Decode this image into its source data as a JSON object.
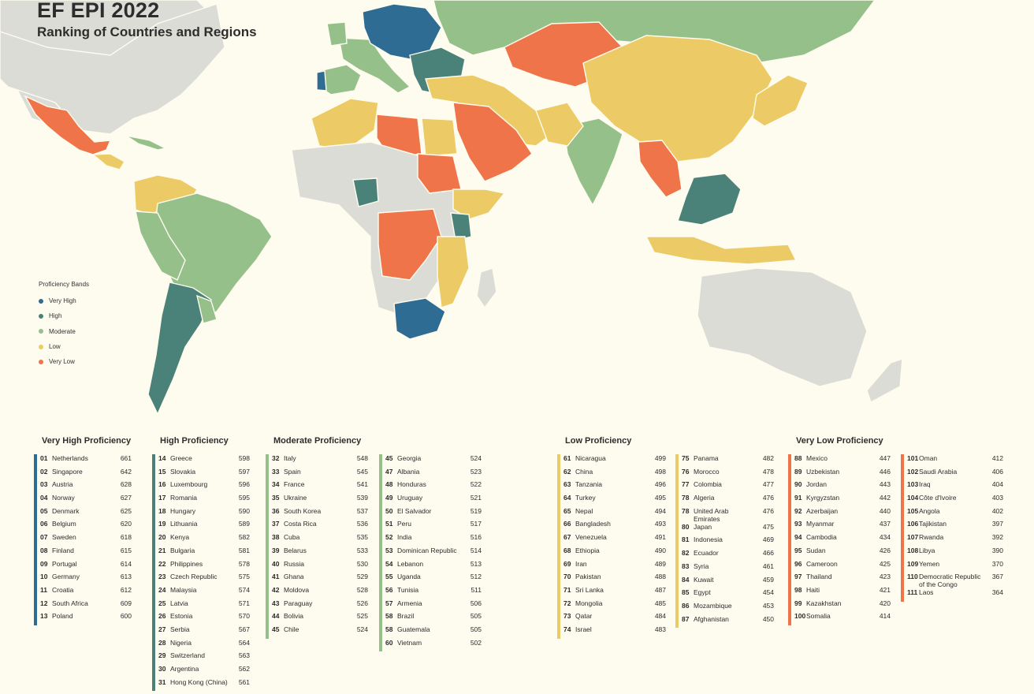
{
  "header": {
    "title": "EF EPI 2022",
    "subtitle": "Ranking of Countries and Regions"
  },
  "legend": {
    "title": "Proficiency Bands",
    "items": [
      {
        "label": "Very High",
        "color": "#2e6c94"
      },
      {
        "label": "High",
        "color": "#4a8279"
      },
      {
        "label": "Moderate",
        "color": "#96c08a"
      },
      {
        "label": "Low",
        "color": "#eccb66"
      },
      {
        "label": "Very Low",
        "color": "#f07449"
      }
    ]
  },
  "chart_data": {
    "type": "table",
    "title": "EF EPI 2022",
    "subtitle": "Ranking of Countries and Regions",
    "bands": [
      {
        "name": "Very High Proficiency",
        "color": "#2e6c94",
        "columns": [
          [
            {
              "rank": "01",
              "country": "Netherlands",
              "score": 661
            },
            {
              "rank": "02",
              "country": "Singapore",
              "score": 642
            },
            {
              "rank": "03",
              "country": "Austria",
              "score": 628
            },
            {
              "rank": "04",
              "country": "Norway",
              "score": 627
            },
            {
              "rank": "05",
              "country": "Denmark",
              "score": 625
            },
            {
              "rank": "06",
              "country": "Belgium",
              "score": 620
            },
            {
              "rank": "07",
              "country": "Sweden",
              "score": 618
            },
            {
              "rank": "08",
              "country": "Finland",
              "score": 615
            },
            {
              "rank": "09",
              "country": "Portugal",
              "score": 614
            },
            {
              "rank": "10",
              "country": "Germany",
              "score": 613
            },
            {
              "rank": "11",
              "country": "Croatia",
              "score": 612
            },
            {
              "rank": "12",
              "country": "South Africa",
              "score": 609
            },
            {
              "rank": "13",
              "country": "Poland",
              "score": 600
            }
          ]
        ]
      },
      {
        "name": "High Proficiency",
        "color": "#4a8279",
        "columns": [
          [
            {
              "rank": "14",
              "country": "Greece",
              "score": 598
            },
            {
              "rank": "15",
              "country": "Slovakia",
              "score": 597
            },
            {
              "rank": "16",
              "country": "Luxembourg",
              "score": 596
            },
            {
              "rank": "17",
              "country": "Romania",
              "score": 595
            },
            {
              "rank": "18",
              "country": "Hungary",
              "score": 590
            },
            {
              "rank": "19",
              "country": "Lithuania",
              "score": 589
            },
            {
              "rank": "20",
              "country": "Kenya",
              "score": 582
            },
            {
              "rank": "21",
              "country": "Bulgaria",
              "score": 581
            },
            {
              "rank": "22",
              "country": "Philippines",
              "score": 578
            },
            {
              "rank": "23",
              "country": "Czech Republic",
              "score": 575
            },
            {
              "rank": "24",
              "country": "Malaysia",
              "score": 574
            },
            {
              "rank": "25",
              "country": "Latvia",
              "score": 571
            },
            {
              "rank": "26",
              "country": "Estonia",
              "score": 570
            },
            {
              "rank": "27",
              "country": "Serbia",
              "score": 567
            },
            {
              "rank": "28",
              "country": "Nigeria",
              "score": 564
            },
            {
              "rank": "29",
              "country": "Switzerland",
              "score": 563
            },
            {
              "rank": "30",
              "country": "Argentina",
              "score": 562
            },
            {
              "rank": "31",
              "country": "Hong Kong (China)",
              "score": 561
            }
          ]
        ]
      },
      {
        "name": "Moderate Proficiency",
        "color": "#96c08a",
        "columns": [
          [
            {
              "rank": "32",
              "country": "Italy",
              "score": 548
            },
            {
              "rank": "33",
              "country": "Spain",
              "score": 545
            },
            {
              "rank": "34",
              "country": "France",
              "score": 541
            },
            {
              "rank": "35",
              "country": "Ukraine",
              "score": 539
            },
            {
              "rank": "36",
              "country": "South Korea",
              "score": 537
            },
            {
              "rank": "37",
              "country": "Costa Rica",
              "score": 536
            },
            {
              "rank": "38",
              "country": "Cuba",
              "score": 535
            },
            {
              "rank": "39",
              "country": "Belarus",
              "score": 533
            },
            {
              "rank": "40",
              "country": "Russia",
              "score": 530
            },
            {
              "rank": "41",
              "country": "Ghana",
              "score": 529
            },
            {
              "rank": "42",
              "country": "Moldova",
              "score": 528
            },
            {
              "rank": "43",
              "country": "Paraguay",
              "score": 526
            },
            {
              "rank": "44",
              "country": "Bolivia",
              "score": 525
            },
            {
              "rank": "45",
              "country": "Chile",
              "score": 524
            }
          ],
          [
            {
              "rank": "45",
              "country": "Georgia",
              "score": 524
            },
            {
              "rank": "47",
              "country": "Albania",
              "score": 523
            },
            {
              "rank": "48",
              "country": "Honduras",
              "score": 522
            },
            {
              "rank": "49",
              "country": "Uruguay",
              "score": 521
            },
            {
              "rank": "50",
              "country": "El Salvador",
              "score": 519
            },
            {
              "rank": "51",
              "country": "Peru",
              "score": 517
            },
            {
              "rank": "52",
              "country": "India",
              "score": 516
            },
            {
              "rank": "53",
              "country": "Dominican Republic",
              "score": 514
            },
            {
              "rank": "54",
              "country": "Lebanon",
              "score": 513
            },
            {
              "rank": "55",
              "country": "Uganda",
              "score": 512
            },
            {
              "rank": "56",
              "country": "Tunisia",
              "score": 511
            },
            {
              "rank": "57",
              "country": "Armenia",
              "score": 506
            },
            {
              "rank": "58",
              "country": "Brazil",
              "score": 505
            },
            {
              "rank": "58",
              "country": "Guatemala",
              "score": 505
            },
            {
              "rank": "60",
              "country": "Vietnam",
              "score": 502
            }
          ]
        ]
      },
      {
        "name": "Low Proficiency",
        "color": "#eccb66",
        "columns": [
          [
            {
              "rank": "61",
              "country": "Nicaragua",
              "score": 499
            },
            {
              "rank": "62",
              "country": "China",
              "score": 498
            },
            {
              "rank": "63",
              "country": "Tanzania",
              "score": 496
            },
            {
              "rank": "64",
              "country": "Turkey",
              "score": 495
            },
            {
              "rank": "65",
              "country": "Nepal",
              "score": 494
            },
            {
              "rank": "66",
              "country": "Bangladesh",
              "score": 493
            },
            {
              "rank": "67",
              "country": "Venezuela",
              "score": 491
            },
            {
              "rank": "68",
              "country": "Ethiopia",
              "score": 490
            },
            {
              "rank": "69",
              "country": "Iran",
              "score": 489
            },
            {
              "rank": "70",
              "country": "Pakistan",
              "score": 488
            },
            {
              "rank": "71",
              "country": "Sri Lanka",
              "score": 487
            },
            {
              "rank": "72",
              "country": "Mongolia",
              "score": 485
            },
            {
              "rank": "73",
              "country": "Qatar",
              "score": 484
            },
            {
              "rank": "74",
              "country": "Israel",
              "score": 483
            }
          ],
          [
            {
              "rank": "75",
              "country": "Panama",
              "score": 482
            },
            {
              "rank": "76",
              "country": "Morocco",
              "score": 478
            },
            {
              "rank": "77",
              "country": "Colombia",
              "score": 477
            },
            {
              "rank": "78",
              "country": "Algeria",
              "score": 476
            },
            {
              "rank": "78",
              "country": "United Arab Emirates",
              "score": 476
            },
            {
              "rank": "80",
              "country": "Japan",
              "score": 475
            },
            {
              "rank": "81",
              "country": "Indonesia",
              "score": 469
            },
            {
              "rank": "82",
              "country": "Ecuador",
              "score": 466
            },
            {
              "rank": "83",
              "country": "Syria",
              "score": 461
            },
            {
              "rank": "84",
              "country": "Kuwait",
              "score": 459
            },
            {
              "rank": "85",
              "country": "Egypt",
              "score": 454
            },
            {
              "rank": "86",
              "country": "Mozambique",
              "score": 453
            },
            {
              "rank": "87",
              "country": "Afghanistan",
              "score": 450
            }
          ]
        ]
      },
      {
        "name": "Very Low Proficiency",
        "color": "#f07449",
        "columns": [
          [
            {
              "rank": "88",
              "country": "Mexico",
              "score": 447
            },
            {
              "rank": "89",
              "country": "Uzbekistan",
              "score": 446
            },
            {
              "rank": "90",
              "country": "Jordan",
              "score": 443
            },
            {
              "rank": "91",
              "country": "Kyrgyzstan",
              "score": 442
            },
            {
              "rank": "92",
              "country": "Azerbaijan",
              "score": 440
            },
            {
              "rank": "93",
              "country": "Myanmar",
              "score": 437
            },
            {
              "rank": "94",
              "country": "Cambodia",
              "score": 434
            },
            {
              "rank": "95",
              "country": "Sudan",
              "score": 426
            },
            {
              "rank": "96",
              "country": "Cameroon",
              "score": 425
            },
            {
              "rank": "97",
              "country": "Thailand",
              "score": 423
            },
            {
              "rank": "98",
              "country": "Haiti",
              "score": 421
            },
            {
              "rank": "99",
              "country": "Kazakhstan",
              "score": 420
            },
            {
              "rank": "100",
              "country": "Somalia",
              "score": 414
            }
          ],
          [
            {
              "rank": "101",
              "country": "Oman",
              "score": 412
            },
            {
              "rank": "102",
              "country": "Saudi Arabia",
              "score": 406
            },
            {
              "rank": "103",
              "country": "Iraq",
              "score": 404
            },
            {
              "rank": "104",
              "country": "Côte d'Ivoire",
              "score": 403
            },
            {
              "rank": "105",
              "country": "Angola",
              "score": 402
            },
            {
              "rank": "106",
              "country": "Tajikistan",
              "score": 397
            },
            {
              "rank": "107",
              "country": "Rwanda",
              "score": 392
            },
            {
              "rank": "108",
              "country": "Libya",
              "score": 390
            },
            {
              "rank": "109",
              "country": "Yemen",
              "score": 370
            },
            {
              "rank": "110",
              "country": "Democratic Republic of the Congo",
              "score": 367
            },
            {
              "rank": "111",
              "country": "Laos",
              "score": 364
            }
          ]
        ]
      }
    ]
  },
  "map_colors": {
    "no_data": "#dcdcd6",
    "ocean": "#fefcef"
  }
}
